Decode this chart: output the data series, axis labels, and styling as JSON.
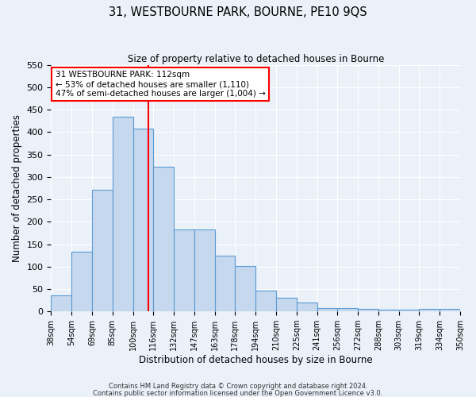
{
  "title": "31, WESTBOURNE PARK, BOURNE, PE10 9QS",
  "subtitle": "Size of property relative to detached houses in Bourne",
  "xlabel": "Distribution of detached houses by size in Bourne",
  "ylabel": "Number of detached properties",
  "bar_values": [
    35,
    133,
    272,
    435,
    407,
    322,
    182,
    182,
    125,
    102,
    46,
    30,
    20,
    8,
    8,
    5,
    4,
    4,
    5,
    5
  ],
  "bar_labels": [
    "38sqm",
    "54sqm",
    "69sqm",
    "85sqm",
    "100sqm",
    "116sqm",
    "132sqm",
    "147sqm",
    "163sqm",
    "178sqm",
    "194sqm",
    "210sqm",
    "225sqm",
    "241sqm",
    "256sqm",
    "272sqm",
    "288sqm",
    "303sqm",
    "319sqm",
    "334sqm",
    "350sqm"
  ],
  "bar_color": "#c5d8ed",
  "bar_edge_color": "#5b9bd5",
  "vline_color": "red",
  "annotation_title": "31 WESTBOURNE PARK: 112sqm",
  "annotation_line1": "← 53% of detached houses are smaller (1,110)",
  "annotation_line2": "47% of semi-detached houses are larger (1,004) →",
  "annotation_box_color": "white",
  "annotation_box_edge": "red",
  "ylim": [
    0,
    550
  ],
  "yticks": [
    0,
    50,
    100,
    150,
    200,
    250,
    300,
    350,
    400,
    450,
    500,
    550
  ],
  "footer1": "Contains HM Land Registry data © Crown copyright and database right 2024.",
  "footer2": "Contains public sector information licensed under the Open Government Licence v3.0.",
  "background_color": "#eaf1f9",
  "grid_color": "white"
}
